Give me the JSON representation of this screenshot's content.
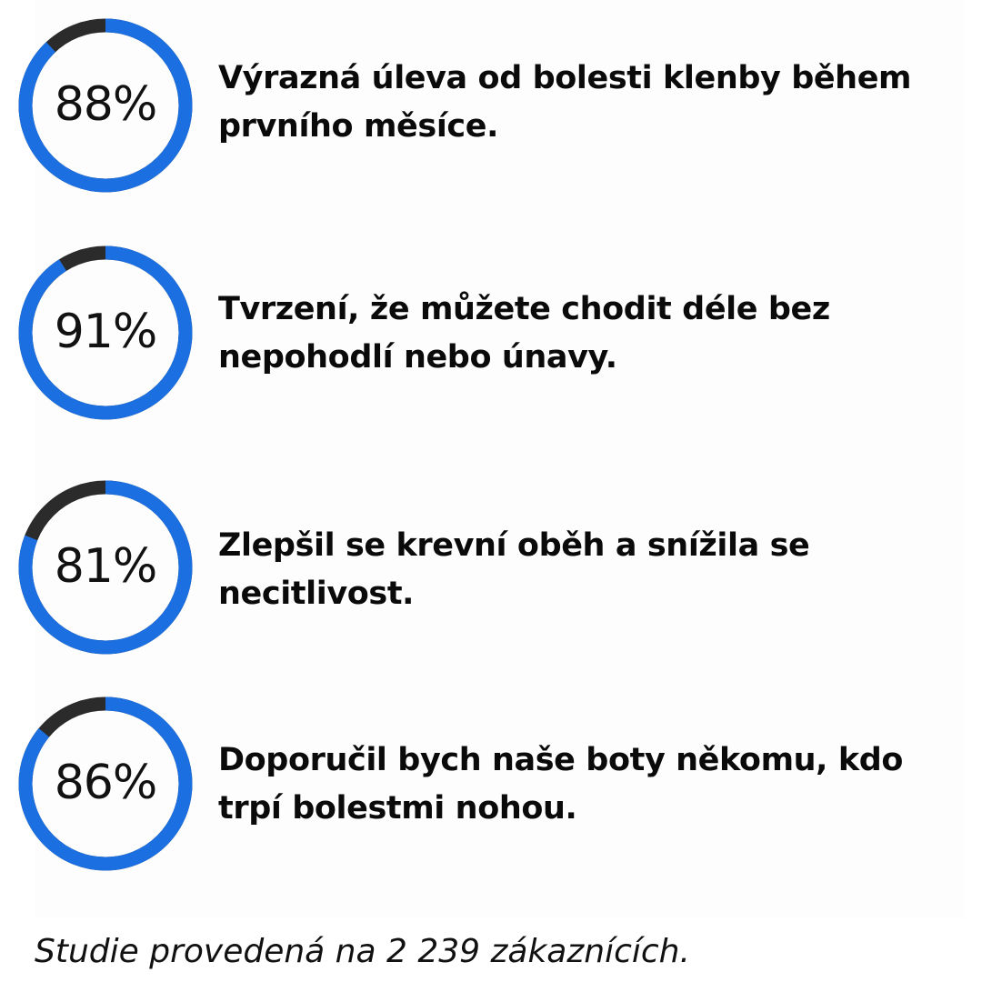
{
  "colors": {
    "ring_fill": "#1b6fe0",
    "ring_track": "#2b2b2b",
    "text": "#0a0a0a"
  },
  "stats": [
    {
      "percent_label": "88%",
      "value": 88,
      "text": "Výrazná úleva od bolesti klenby během prvního měsíce."
    },
    {
      "percent_label": "91%",
      "value": 91,
      "text": "Tvrzení, že můžete chodit déle bez nepohodlí nebo únavy."
    },
    {
      "percent_label": "81%",
      "value": 81,
      "text": "Zlepšil se krevní oběh a snížila se necitlivost."
    },
    {
      "percent_label": "86%",
      "value": 86,
      "text": "Doporučil bych naše boty někomu, kdo trpí bolestmi nohou."
    }
  ],
  "footnote": "Studie provedená na 2 239 zákaznících."
}
